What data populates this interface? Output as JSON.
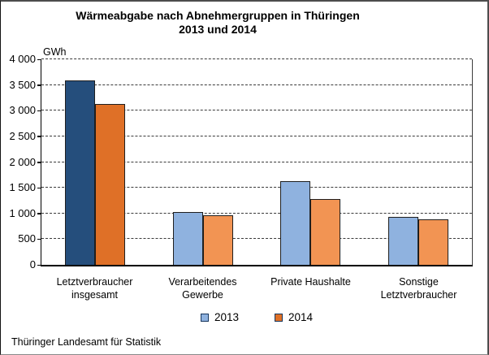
{
  "figure": {
    "title_line1": "Wärmeabgabe nach Abnehmergruppen in Thüringen",
    "title_line2": "2013 und 2014",
    "unit_label": "GWh",
    "source": "Thüringer Landesamt für Statistik"
  },
  "chart_data": {
    "type": "bar",
    "title": "Wärmeabgabe nach Abnehmergruppen in Thüringen 2013 und 2014",
    "unit": "GWh",
    "categories": [
      "Letztverbraucher insgesamt",
      "Verarbeitendes Gewerbe",
      "Private Haushalte",
      "Sonstige Letztverbraucher"
    ],
    "series": [
      {
        "name": "2013",
        "values": [
          3597,
          1033,
          1624,
          940
        ],
        "colors": [
          "#254E7C",
          "#8FB2DF",
          "#8FB2DF",
          "#8FB2DF"
        ],
        "legend_color": "#8FB2DF"
      },
      {
        "name": "2014",
        "values": [
          3123,
          957,
          1281,
          885
        ],
        "colors": [
          "#DF7027",
          "#F29453",
          "#F29453",
          "#F29453"
        ],
        "legend_color": "#DF7027"
      }
    ],
    "ylim": [
      0,
      4000
    ],
    "ytick_step": 500,
    "ytick_labels": [
      "0",
      "500",
      "1 000",
      "1 500",
      "2 000",
      "2 500",
      "3 000",
      "3 500",
      "4 000"
    ],
    "grid": "dashed-horizontal",
    "legend_position": "bottom-center"
  }
}
